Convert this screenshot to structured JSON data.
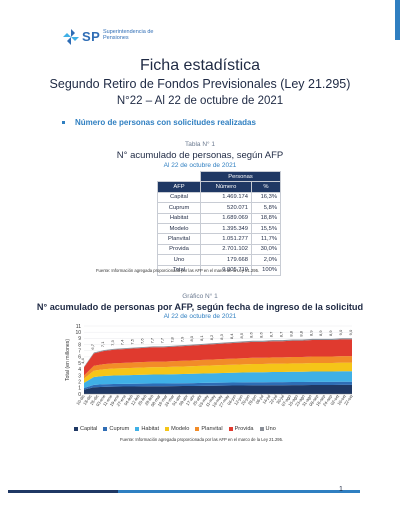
{
  "header": {
    "logo_letters": "SP",
    "logo_sub_line1": "Superintendencia de",
    "logo_sub_line2": "Pensiones"
  },
  "title": "Ficha estadística",
  "subtitle": "Segundo Retiro de Fondos Previsionales (Ley 21.295)",
  "issue": "N°22 – Al 22 de octubre de 2021",
  "section_bullet": "Número de personas con solicitudes realizadas",
  "table": {
    "caption": "Tabla N° 1",
    "title": "N° acumulado de personas, según AFP",
    "date": "Al 22 de octubre de 2021",
    "group_header": "Personas",
    "columns": [
      "AFP",
      "Número",
      "%"
    ],
    "rows": [
      [
        "Capital",
        "1.469.174",
        "16,3%"
      ],
      [
        "Cuprum",
        "520.071",
        "5,8%"
      ],
      [
        "Habitat",
        "1.689.069",
        "18,8%"
      ],
      [
        "Modelo",
        "1.395.349",
        "15,5%"
      ],
      [
        "Planvital",
        "1.051.277",
        "11,7%"
      ],
      [
        "Provida",
        "2.701.102",
        "30,0%"
      ],
      [
        "Uno",
        "179.668",
        "2,0%"
      ]
    ],
    "total": [
      "Total",
      "9.005.710",
      "100%"
    ],
    "source": "Fuente: Información agregada proporcionada por las AFP en el marco de la Ley 21.295."
  },
  "chart_data": {
    "type": "area",
    "caption": "Gráfico N° 1",
    "title": "N° acumulado de personas por AFP, según fecha de ingreso de la solicitud",
    "date": "Al 22 de octubre de 2021",
    "ylabel": "Total (en millones)",
    "ylim": [
      0,
      11
    ],
    "yticks": [
      0,
      1,
      2,
      3,
      4,
      5,
      6,
      7,
      8,
      9,
      10,
      11
    ],
    "x": [
      "10-dic",
      "16-dic",
      "22-dic",
      "28-dic",
      "03-ene",
      "09-ene",
      "15-ene",
      "21-ene",
      "27-ene",
      "02-feb",
      "08-feb",
      "14-feb",
      "20-feb",
      "26-feb",
      "04-mar",
      "10-mar",
      "16-mar",
      "22-mar",
      "28-mar",
      "03-abr",
      "09-abr",
      "15-abr",
      "21-abr",
      "27-abr",
      "03-may",
      "09-may",
      "15-may",
      "21-may",
      "27-may",
      "02-jun",
      "08-jun",
      "14-jun",
      "20-jun",
      "26-jun",
      "02-jul",
      "08-jul",
      "14-jul",
      "20-jul",
      "26-jul",
      "01-ago",
      "07-ago",
      "13-ago",
      "19-ago",
      "25-ago",
      "31-ago",
      "06-sept",
      "12-sept",
      "18-sept",
      "24-sept",
      "30-sept",
      "06-oct",
      "12-oct",
      "18-oct",
      "22-oct"
    ],
    "xtick_labels": [
      "10-dic",
      "18-dic",
      "26-dic",
      "03-ene",
      "11-ene",
      "19-ene",
      "27-ene",
      "04-feb",
      "12-feb",
      "20-feb",
      "28-feb",
      "08-mar",
      "16-mar",
      "24-mar",
      "01-abr",
      "09-abr",
      "17-abr",
      "25-abr",
      "03-may",
      "11-may",
      "19-may",
      "27-may",
      "04-jun",
      "12-jun",
      "20-jun",
      "28-jun",
      "06-jul",
      "14-jul",
      "22-jul",
      "30-jul",
      "07-ago",
      "15-ago",
      "23-ago",
      "31-ago",
      "08-sep",
      "16-sep",
      "24-sep",
      "02-oct",
      "10-oct",
      "22-oct"
    ],
    "total_labels": [
      "4,4",
      "6,7",
      "7,1",
      "7,3",
      "7,4",
      "7,5",
      "7,6",
      "7,7",
      "7,7",
      "7,8",
      "7,9",
      "8,0",
      "8,1",
      "8,2",
      "8,3",
      "8,4",
      "8,5",
      "8,6",
      "8,6",
      "8,7",
      "8,7",
      "8,8",
      "8,8",
      "8,9",
      "8,9",
      "8,9",
      "9,0",
      "9,0"
    ],
    "series": [
      {
        "name": "Capital",
        "color": "#1f3864",
        "share": 0.163
      },
      {
        "name": "Cuprum",
        "color": "#2f6db5",
        "share": 0.058
      },
      {
        "name": "Habitat",
        "color": "#3fb0e6",
        "share": 0.188
      },
      {
        "name": "Modelo",
        "color": "#f5c518",
        "share": 0.155
      },
      {
        "name": "Planvital",
        "color": "#f28c28",
        "share": 0.117
      },
      {
        "name": "Provida",
        "color": "#e03a2f",
        "share": 0.3
      },
      {
        "name": "Uno",
        "color": "#8a8f98",
        "share": 0.02
      }
    ],
    "totals": [
      4.4,
      6.7,
      7.1,
      7.3,
      7.4,
      7.5,
      7.6,
      7.7,
      7.7,
      7.8,
      7.9,
      8.0,
      8.1,
      8.2,
      8.3,
      8.4,
      8.5,
      8.6,
      8.6,
      8.7,
      8.7,
      8.8,
      8.8,
      8.9,
      8.9,
      8.9,
      9.0,
      9.0
    ],
    "source": "Fuente: Información agregada proporcionada por las AFP en el marco de la Ley 21.295."
  },
  "footer": {
    "page_number": "1"
  }
}
